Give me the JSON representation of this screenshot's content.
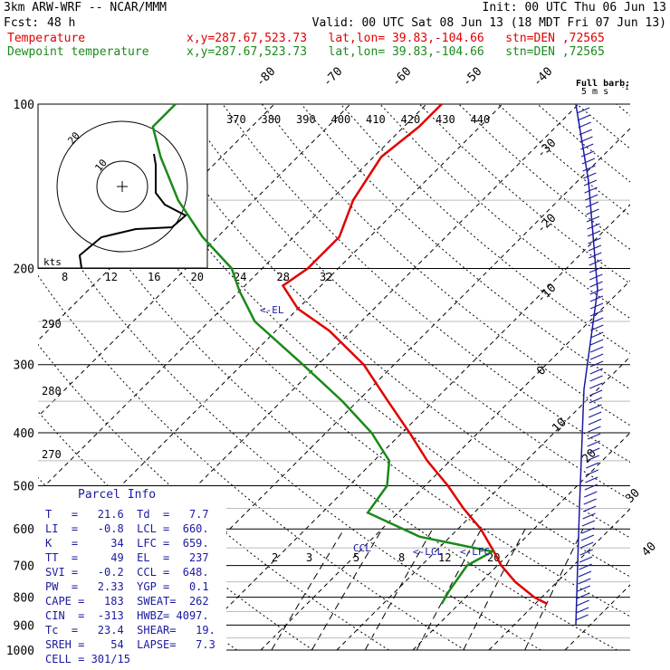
{
  "header": {
    "model": "3km ARW-WRF -- NCAR/MMM",
    "init": "Init: 00 UTC Thu 06 Jun 13",
    "fcst_label": "Fcst:",
    "fcst_value": "48 h",
    "valid": "Valid: 00 UTC Sat 08 Jun 13 (18 MDT Fri 07 Jun 13)",
    "temp_label": "Temperature",
    "dew_label": "Dewpoint temperature",
    "temp_loc": "x,y=287.67,523.73   lat,lon= 39.83,-104.66   stn=DEN ,72565",
    "dew_loc": "x,y=287.67,523.73   lat,lon= 39.83,-104.66   stn=DEN ,72565"
  },
  "colors": {
    "temperature": "#e00000",
    "dewpoint": "#1a8a1a",
    "annotation": "#1a1aa0",
    "grid": "#000000"
  },
  "chart_data": {
    "type": "skew-t",
    "pressure_levels": [
      100,
      200,
      300,
      400,
      500,
      600,
      700,
      800,
      900,
      1000
    ],
    "temperature_isotherm_labels": [
      "-80",
      "-70",
      "-60",
      "-50",
      "-40",
      "-30",
      "-20",
      "-10",
      "0",
      "10",
      "20",
      "30",
      "40"
    ],
    "theta_e_labels": [
      "370",
      "380",
      "390",
      "400",
      "410",
      "420",
      "430",
      "440"
    ],
    "theta_e_lower_labels": [
      "290",
      "280",
      "270"
    ],
    "mixing_ratio_labels": [
      "2",
      "3",
      "5",
      "8",
      "12",
      "20"
    ],
    "annotations": [
      "<-EL",
      "CCL",
      "<-LCL",
      "<-LFC"
    ],
    "temperature_profile": [
      {
        "p": 823,
        "t": 21.6
      },
      {
        "p": 800,
        "t": 19.0
      },
      {
        "p": 750,
        "t": 14.5
      },
      {
        "p": 700,
        "t": 10.5
      },
      {
        "p": 660,
        "t": 7.7
      },
      {
        "p": 600,
        "t": 3.0
      },
      {
        "p": 550,
        "t": -2.0
      },
      {
        "p": 500,
        "t": -7.0
      },
      {
        "p": 450,
        "t": -13.0
      },
      {
        "p": 400,
        "t": -19.0
      },
      {
        "p": 350,
        "t": -26.0
      },
      {
        "p": 300,
        "t": -34.0
      },
      {
        "p": 260,
        "t": -43.0
      },
      {
        "p": 237,
        "t": -50.0
      },
      {
        "p": 215,
        "t": -55.0
      },
      {
        "p": 200,
        "t": -54.0
      },
      {
        "p": 175,
        "t": -54.0
      },
      {
        "p": 150,
        "t": -57.0
      },
      {
        "p": 125,
        "t": -59.0
      },
      {
        "p": 110,
        "t": -58.0
      },
      {
        "p": 100,
        "t": -58.0
      }
    ],
    "dewpoint_profile": [
      {
        "p": 823,
        "t": 7.7
      },
      {
        "p": 780,
        "t": 7.0
      },
      {
        "p": 700,
        "t": 6.0
      },
      {
        "p": 660,
        "t": 7.5
      },
      {
        "p": 620,
        "t": -4.0
      },
      {
        "p": 560,
        "t": -14.0
      },
      {
        "p": 500,
        "t": -15.0
      },
      {
        "p": 450,
        "t": -18.0
      },
      {
        "p": 400,
        "t": -24.0
      },
      {
        "p": 350,
        "t": -32.0
      },
      {
        "p": 300,
        "t": -42.0
      },
      {
        "p": 250,
        "t": -54.0
      },
      {
        "p": 220,
        "t": -60.0
      },
      {
        "p": 200,
        "t": -64.0
      },
      {
        "p": 175,
        "t": -72.0
      },
      {
        "p": 150,
        "t": -80.0
      },
      {
        "p": 125,
        "t": -88.0
      },
      {
        "p": 110,
        "t": -93.0
      },
      {
        "p": 100,
        "t": -93.0
      }
    ],
    "hodograph": {
      "ring_labels": [
        "10",
        "20"
      ],
      "units": "kts",
      "speed_labels": [
        "8",
        "12",
        "16",
        "20",
        "24",
        "28",
        "32"
      ]
    },
    "barb_legend": {
      "title": "Full barb:",
      "value": "5 m s",
      "sup": "-1"
    },
    "y_scale": "log"
  },
  "parcel_info": {
    "title": "Parcel Info",
    "rows": [
      "T   =   21.6  Td  =   7.7",
      "LI  =   -0.8  LCL =  660.",
      "K   =     34  LFC =  659.",
      "TT  =     49  EL  =   237",
      "SVI =   -0.2  CCL =  648.",
      "PW  =   2.33  YGP =   0.1",
      "CAPE =   183  SWEAT=  262",
      "CIN  =  -313  HWBZ= 4097.",
      "Tc  =   23.4  SHEAR=   19.",
      "SREH =    54  LAPSE=   7.3",
      "CELL = 301/15"
    ]
  }
}
